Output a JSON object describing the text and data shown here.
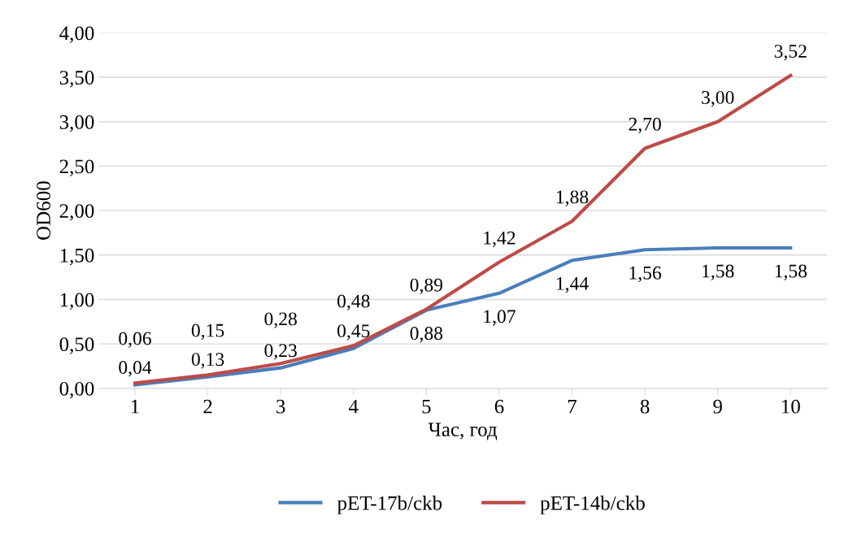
{
  "chart_data": {
    "type": "line",
    "xlabel": "Час, год",
    "ylabel": "OD600",
    "categories": [
      "1",
      "2",
      "3",
      "4",
      "5",
      "6",
      "7",
      "8",
      "9",
      "10"
    ],
    "series": [
      {
        "name": "pET-17b/ckb",
        "color": "#4a7ebb",
        "values": [
          0.04,
          0.13,
          0.23,
          0.45,
          0.88,
          1.07,
          1.44,
          1.56,
          1.58,
          1.58
        ],
        "value_labels": [
          "0,04",
          "0,13",
          "0,23",
          "0,45",
          "0,88",
          "1,07",
          "1,44",
          "1,56",
          "1,58",
          "1,58"
        ]
      },
      {
        "name": "pET-14b/ckb",
        "color": "#be4b48",
        "values": [
          0.06,
          0.15,
          0.28,
          0.48,
          0.89,
          1.42,
          1.88,
          2.7,
          3.0,
          3.52
        ],
        "value_labels": [
          "0,06",
          "0,15",
          "0,28",
          "0,48",
          "0,89",
          "1,42",
          "1,88",
          "2,70",
          "3,00",
          "3,52"
        ]
      }
    ],
    "ylim": [
      0,
      4
    ],
    "yticks": [
      {
        "value": 0,
        "label": "0,00"
      },
      {
        "value": 0.5,
        "label": "0,50"
      },
      {
        "value": 1,
        "label": "1,00"
      },
      {
        "value": 1.5,
        "label": "1,50"
      },
      {
        "value": 2,
        "label": "2,00"
      },
      {
        "value": 2.5,
        "label": "2,50"
      },
      {
        "value": 3,
        "label": "3,00"
      },
      {
        "value": 3.5,
        "label": "3,50"
      },
      {
        "value": 4,
        "label": "4,00"
      }
    ],
    "grid": "y",
    "legend": "bottom",
    "marker": "none",
    "line_style": "solid"
  }
}
